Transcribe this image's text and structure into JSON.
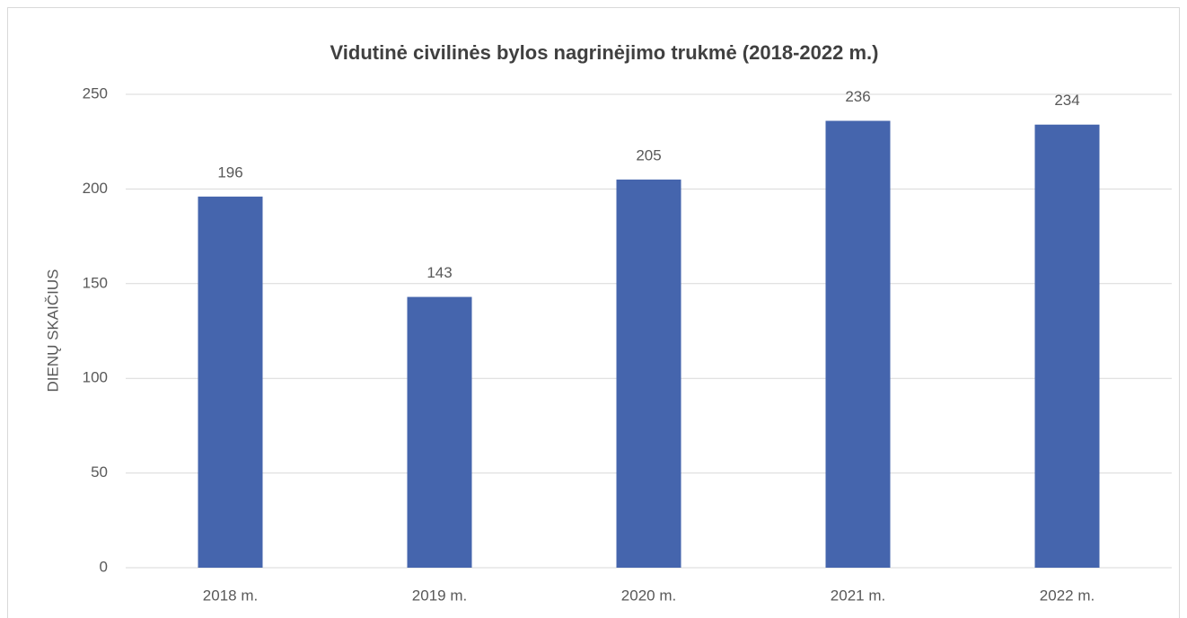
{
  "chart_data": {
    "type": "bar",
    "title": "Vidutinė civilinės bylos nagrinėjimo trukmė (2018-2022 m.)",
    "y_label": "DIENŲ SKAIČIUS",
    "categories": [
      "2018 m.",
      "2019 m.",
      "2020 m.",
      "2021 m.",
      "2022 m."
    ],
    "values": [
      196,
      143,
      205,
      236,
      234
    ],
    "color": "#4565ad",
    "ylim": [
      0,
      250
    ],
    "yticks": [
      0,
      50,
      100,
      150,
      200,
      250
    ],
    "grid": true
  }
}
